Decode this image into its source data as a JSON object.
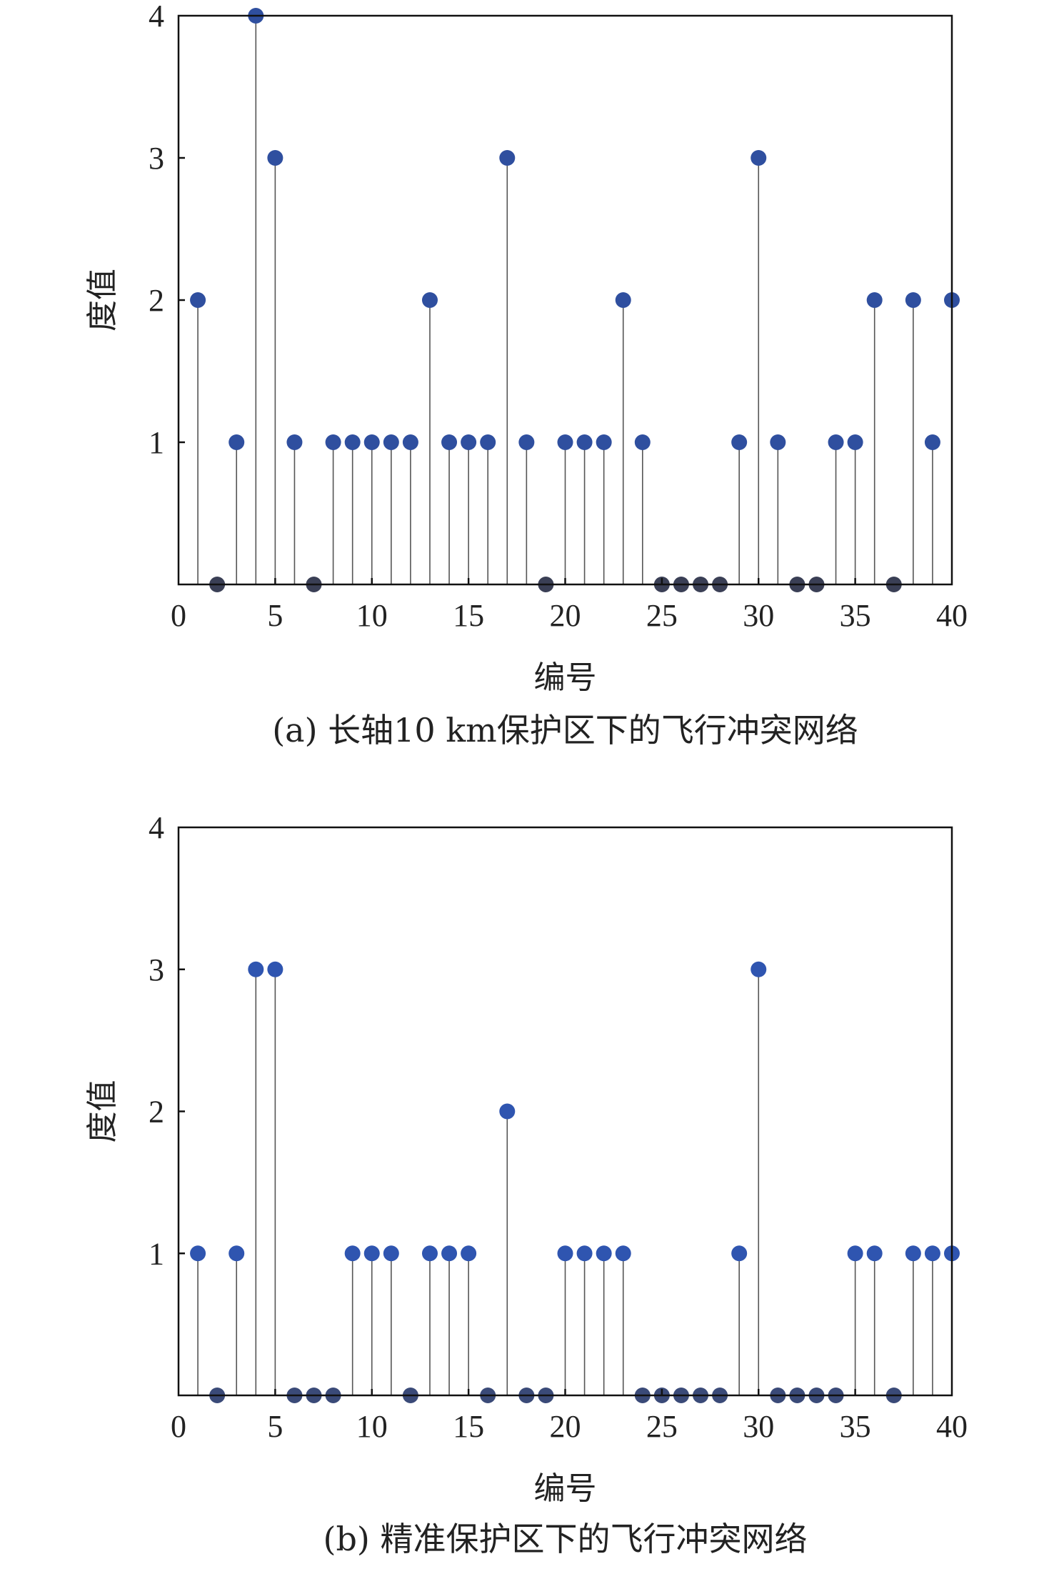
{
  "chart_data": [
    {
      "type": "stem",
      "caption": "(a) 长轴10 km保护区下的飞行冲突网络",
      "xlabel": "编号",
      "ylabel": "度值",
      "xlim": [
        0,
        40
      ],
      "ylim": [
        0,
        4
      ],
      "xticks": [
        "0",
        "5",
        "10",
        "15",
        "20",
        "25",
        "30",
        "35",
        "40"
      ],
      "yticks": [
        "1",
        "2",
        "3",
        "4"
      ],
      "x": [
        1,
        2,
        3,
        4,
        5,
        6,
        7,
        8,
        9,
        10,
        11,
        12,
        13,
        14,
        15,
        16,
        17,
        18,
        19,
        20,
        21,
        22,
        23,
        24,
        25,
        26,
        27,
        28,
        29,
        30,
        31,
        32,
        33,
        34,
        35,
        36,
        37,
        38,
        39,
        40
      ],
      "values": [
        2,
        0,
        1,
        4,
        3,
        1,
        0,
        1,
        1,
        1,
        1,
        1,
        2,
        1,
        1,
        1,
        3,
        1,
        0,
        1,
        1,
        1,
        2,
        1,
        0,
        0,
        0,
        0,
        1,
        3,
        1,
        0,
        0,
        1,
        1,
        2,
        0,
        2,
        1,
        2
      ],
      "marker_color": "#2f4f9f",
      "zero_marker_color": "#3a3f55"
    },
    {
      "type": "stem",
      "caption": "(b) 精准保护区下的飞行冲突网络",
      "xlabel": "编号",
      "ylabel": "度值",
      "xlim": [
        0,
        40
      ],
      "ylim": [
        0,
        4
      ],
      "xticks": [
        "0",
        "5",
        "10",
        "15",
        "20",
        "25",
        "30",
        "35",
        "40"
      ],
      "yticks": [
        "1",
        "2",
        "3",
        "4"
      ],
      "x": [
        1,
        2,
        3,
        4,
        5,
        6,
        7,
        8,
        9,
        10,
        11,
        12,
        13,
        14,
        15,
        16,
        17,
        18,
        19,
        20,
        21,
        22,
        23,
        24,
        25,
        26,
        27,
        28,
        29,
        30,
        31,
        32,
        33,
        34,
        35,
        36,
        37,
        38,
        39,
        40
      ],
      "values": [
        1,
        0,
        1,
        3,
        3,
        0,
        0,
        0,
        1,
        1,
        1,
        0,
        1,
        1,
        1,
        0,
        2,
        0,
        0,
        1,
        1,
        1,
        1,
        0,
        0,
        0,
        0,
        0,
        1,
        3,
        0,
        0,
        0,
        0,
        1,
        1,
        0,
        1,
        1,
        1
      ],
      "marker_color": "#2f55b0",
      "zero_marker_color": "#3a4a78"
    }
  ]
}
